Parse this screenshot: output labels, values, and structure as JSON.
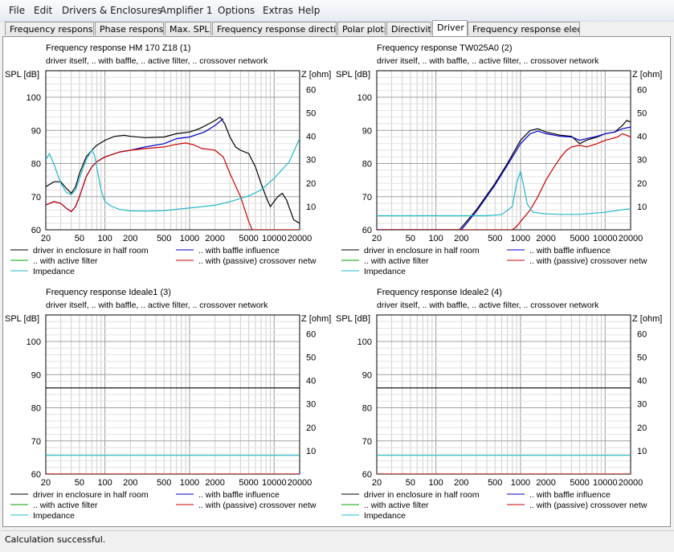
{
  "menu": [
    "File",
    "Edit",
    "Drivers & Enclosures",
    "Amplifier 1",
    "Options",
    "Extras",
    "Help"
  ],
  "tabs": [
    {
      "label": "Frequency response.",
      "active": false
    },
    {
      "label": "Phase response",
      "active": false
    },
    {
      "label": "Max. SPL",
      "active": false
    },
    {
      "label": "Frequency response directions",
      "active": false
    },
    {
      "label": "Polar plots",
      "active": false
    },
    {
      "label": "Directivity",
      "active": false
    },
    {
      "label": "Driver",
      "active": true
    },
    {
      "label": "Frequency response electr..",
      "active": false
    }
  ],
  "status": "Calculation successful.",
  "colors": {
    "driver_in_enclosure": "#000000",
    "baffle_influence": "#0000cc",
    "active_filter": "#00a000",
    "passive_crossover": "#cc0000",
    "impedance": "#22b8c8"
  },
  "legend": [
    {
      "label": "driver in enclosure in half room",
      "color": "#000000"
    },
    {
      "label": ".. with baffle influence",
      "color": "#0000cc"
    },
    {
      "label": ".. with active filter",
      "color": "#00a000"
    },
    {
      "label": ".. with (passive) crossover netw",
      "color": "#cc0000"
    },
    {
      "label": "Impedance",
      "color": "#22b8c8"
    }
  ],
  "chart_data": [
    {
      "type": "line",
      "title": "Frequency response HM 170 Z18 (1)",
      "subtitle": "driver itself, .. with baffle, .. active filter, .. crossover network",
      "ylabel": "SPL [dB]",
      "y2label": "Z [ohm]",
      "xscale": "log",
      "xlim": [
        20,
        20000
      ],
      "ylim": [
        60,
        108
      ],
      "y2lim": [
        0,
        68
      ],
      "x_ticks": [
        "20",
        "50",
        "100",
        "200",
        "500",
        "1000",
        "2000",
        "5000",
        "10000",
        "20000"
      ],
      "y_ticks": [
        "60",
        "70",
        "80",
        "90",
        "100"
      ],
      "y2_ticks": [
        "10",
        "20",
        "30",
        "40",
        "50",
        "60"
      ],
      "grid": true,
      "series": [
        {
          "name": "driver in enclosure in half room",
          "color": "#000000",
          "axis": "left",
          "points": [
            [
              20,
              73
            ],
            [
              25,
              74.5
            ],
            [
              30,
              74.5
            ],
            [
              35,
              72.5
            ],
            [
              40,
              71
            ],
            [
              45,
              73
            ],
            [
              50,
              77
            ],
            [
              60,
              82
            ],
            [
              70,
              84
            ],
            [
              80,
              85.5
            ],
            [
              100,
              87
            ],
            [
              130,
              88.2
            ],
            [
              170,
              88.5
            ],
            [
              200,
              88.2
            ],
            [
              300,
              87.8
            ],
            [
              500,
              88
            ],
            [
              700,
              89
            ],
            [
              1000,
              89.5
            ],
            [
              1300,
              90.5
            ],
            [
              1700,
              92
            ],
            [
              2000,
              93
            ],
            [
              2300,
              94
            ],
            [
              2600,
              92
            ],
            [
              3000,
              88
            ],
            [
              3500,
              85
            ],
            [
              4000,
              84
            ],
            [
              5000,
              83
            ],
            [
              6000,
              79
            ],
            [
              7000,
              74
            ],
            [
              8000,
              70
            ],
            [
              9000,
              67
            ],
            [
              11000,
              70
            ],
            [
              12500,
              71
            ],
            [
              14000,
              69
            ],
            [
              17000,
              63
            ],
            [
              20000,
              62
            ]
          ]
        },
        {
          "name": ".. with baffle influence",
          "color": "#0000cc",
          "axis": "left",
          "points": [
            [
              20,
              67.5
            ],
            [
              25,
              68.5
            ],
            [
              30,
              68
            ],
            [
              35,
              66.5
            ],
            [
              40,
              65.5
            ],
            [
              45,
              67
            ],
            [
              50,
              70
            ],
            [
              60,
              76
            ],
            [
              70,
              79
            ],
            [
              80,
              80.5
            ],
            [
              100,
              82
            ],
            [
              150,
              83.5
            ],
            [
              200,
              84
            ],
            [
              300,
              85
            ],
            [
              500,
              86
            ],
            [
              700,
              87.5
            ],
            [
              1000,
              88
            ],
            [
              1500,
              89.5
            ],
            [
              2000,
              91.5
            ],
            [
              2500,
              93.5
            ]
          ]
        },
        {
          "name": ".. with (passive) crossover netw",
          "color": "#cc0000",
          "axis": "left",
          "points": [
            [
              20,
              67.5
            ],
            [
              25,
              68.5
            ],
            [
              30,
              68
            ],
            [
              35,
              66.5
            ],
            [
              40,
              65.5
            ],
            [
              45,
              67
            ],
            [
              50,
              70
            ],
            [
              60,
              76
            ],
            [
              70,
              79
            ],
            [
              80,
              80.5
            ],
            [
              100,
              82
            ],
            [
              150,
              83.5
            ],
            [
              200,
              84
            ],
            [
              300,
              84.5
            ],
            [
              500,
              85
            ],
            [
              700,
              85.8
            ],
            [
              900,
              86.2
            ],
            [
              1100,
              85.7
            ],
            [
              1400,
              84.5
            ],
            [
              1700,
              84.3
            ],
            [
              2000,
              84
            ],
            [
              2500,
              82
            ],
            [
              3000,
              77
            ],
            [
              4000,
              70
            ],
            [
              5000,
              62.5
            ],
            [
              5500,
              60
            ],
            [
              20000,
              60
            ]
          ]
        },
        {
          "name": "Impedance",
          "color": "#22b8c8",
          "axis": "right",
          "points": [
            [
              20,
              30
            ],
            [
              22,
              32.5
            ],
            [
              25,
              28
            ],
            [
              30,
              20
            ],
            [
              35,
              16
            ],
            [
              40,
              15
            ],
            [
              45,
              17
            ],
            [
              50,
              22
            ],
            [
              60,
              30
            ],
            [
              70,
              34
            ],
            [
              75,
              32
            ],
            [
              80,
              27
            ],
            [
              90,
              17
            ],
            [
              100,
              12
            ],
            [
              120,
              10
            ],
            [
              150,
              8.7
            ],
            [
              200,
              8.1
            ],
            [
              300,
              8
            ],
            [
              500,
              8.2
            ],
            [
              1000,
              9.3
            ],
            [
              2000,
              10.5
            ],
            [
              3000,
              12
            ],
            [
              5000,
              14.5
            ],
            [
              7000,
              17
            ],
            [
              10000,
              22
            ],
            [
              15000,
              29
            ],
            [
              20000,
              39
            ]
          ]
        }
      ]
    },
    {
      "type": "line",
      "title": "Frequency response TW025A0 (2)",
      "subtitle": "driver itself, .. with baffle, .. active filter, .. crossover network",
      "ylabel": "SPL [dB]",
      "y2label": "Z [ohm]",
      "xscale": "log",
      "xlim": [
        20,
        20000
      ],
      "ylim": [
        60,
        108
      ],
      "y2lim": [
        0,
        68
      ],
      "x_ticks": [
        "20",
        "50",
        "100",
        "200",
        "500",
        "1000",
        "2000",
        "5000",
        "10000",
        "20000"
      ],
      "y_ticks": [
        "60",
        "70",
        "80",
        "90",
        "100"
      ],
      "y2_ticks": [
        "10",
        "20",
        "30",
        "40",
        "50",
        "60"
      ],
      "grid": true,
      "series": [
        {
          "name": "driver in enclosure in half room",
          "color": "#000000",
          "axis": "left",
          "points": [
            [
              20,
              60
            ],
            [
              190,
              60
            ],
            [
              300,
              66
            ],
            [
              500,
              74
            ],
            [
              700,
              80
            ],
            [
              1000,
              87
            ],
            [
              1300,
              90
            ],
            [
              1600,
              90.5
            ],
            [
              2000,
              89.5
            ],
            [
              3000,
              88.5
            ],
            [
              4000,
              88.2
            ],
            [
              5000,
              86
            ],
            [
              6000,
              87
            ],
            [
              8000,
              88
            ],
            [
              10000,
              89
            ],
            [
              13000,
              89.5
            ],
            [
              16000,
              91.5
            ],
            [
              18000,
              93
            ],
            [
              20000,
              92.5
            ]
          ]
        },
        {
          "name": ".. with baffle influence",
          "color": "#0000cc",
          "axis": "left",
          "points": [
            [
              20,
              60
            ],
            [
              200,
              60
            ],
            [
              300,
              65.5
            ],
            [
              500,
              73.5
            ],
            [
              700,
              79.5
            ],
            [
              1000,
              86
            ],
            [
              1300,
              89
            ],
            [
              1600,
              89.8
            ],
            [
              2000,
              89
            ],
            [
              3000,
              88.2
            ],
            [
              4000,
              88
            ],
            [
              5000,
              87
            ],
            [
              6000,
              87.5
            ],
            [
              8000,
              88.2
            ],
            [
              10000,
              89
            ],
            [
              13000,
              89.5
            ],
            [
              16000,
              90.5
            ],
            [
              20000,
              91
            ]
          ]
        },
        {
          "name": ".. with (passive) crossover netw",
          "color": "#cc0000",
          "axis": "left",
          "points": [
            [
              20,
              60
            ],
            [
              800,
              60
            ],
            [
              900,
              61
            ],
            [
              1000,
              62.5
            ],
            [
              1300,
              66
            ],
            [
              1600,
              70
            ],
            [
              2000,
              75
            ],
            [
              2500,
              79
            ],
            [
              3000,
              82
            ],
            [
              3500,
              84
            ],
            [
              4000,
              85
            ],
            [
              5000,
              85.5
            ],
            [
              6000,
              85
            ],
            [
              7000,
              85.5
            ],
            [
              8000,
              86
            ],
            [
              10000,
              87
            ],
            [
              12000,
              87.5
            ],
            [
              14000,
              88
            ],
            [
              16000,
              89
            ],
            [
              18000,
              88.5
            ],
            [
              20000,
              88
            ]
          ]
        },
        {
          "name": "Impedance",
          "color": "#22b8c8",
          "axis": "right",
          "points": [
            [
              20,
              6
            ],
            [
              400,
              6
            ],
            [
              600,
              6.5
            ],
            [
              800,
              10
            ],
            [
              900,
              20
            ],
            [
              1000,
              25
            ],
            [
              1100,
              18
            ],
            [
              1200,
              11
            ],
            [
              1400,
              7.5
            ],
            [
              2000,
              6.8
            ],
            [
              3000,
              6.6
            ],
            [
              5000,
              6.6
            ],
            [
              10000,
              7.5
            ],
            [
              15000,
              8.5
            ],
            [
              20000,
              9
            ]
          ]
        }
      ]
    },
    {
      "type": "line",
      "title": "Frequency response Ideale1 (3)",
      "subtitle": "driver itself, .. with baffle, .. active filter, .. crossover network",
      "ylabel": "SPL [dB]",
      "y2label": "Z [ohm]",
      "xscale": "log",
      "xlim": [
        20,
        20000
      ],
      "ylim": [
        60,
        108
      ],
      "y2lim": [
        0,
        68
      ],
      "x_ticks": [
        "20",
        "50",
        "100",
        "200",
        "500",
        "1000",
        "2000",
        "5000",
        "10000",
        "20000"
      ],
      "y_ticks": [
        "60",
        "70",
        "80",
        "90",
        "100"
      ],
      "y2_ticks": [
        "10",
        "20",
        "30",
        "40",
        "50",
        "60"
      ],
      "grid": true,
      "series": [
        {
          "name": "driver in enclosure in half room",
          "color": "#000000",
          "axis": "left",
          "points": [
            [
              20,
              86
            ],
            [
              20000,
              86
            ]
          ]
        },
        {
          "name": ".. with (passive) crossover netw",
          "color": "#cc0000",
          "axis": "left",
          "points": [
            [
              20,
              60
            ],
            [
              20000,
              60
            ]
          ]
        },
        {
          "name": "Impedance",
          "color": "#22b8c8",
          "axis": "right",
          "points": [
            [
              20,
              8
            ],
            [
              20000,
              8
            ]
          ]
        }
      ]
    },
    {
      "type": "line",
      "title": "Frequency response Ideale2 (4)",
      "subtitle": "driver itself, .. with baffle, .. active filter, .. crossover network",
      "ylabel": "SPL [dB]",
      "y2label": "Z [ohm]",
      "xscale": "log",
      "xlim": [
        20,
        20000
      ],
      "ylim": [
        60,
        108
      ],
      "y2lim": [
        0,
        68
      ],
      "x_ticks": [
        "20",
        "50",
        "100",
        "200",
        "500",
        "1000",
        "2000",
        "5000",
        "10000",
        "20000"
      ],
      "y_ticks": [
        "60",
        "70",
        "80",
        "90",
        "100"
      ],
      "y2_ticks": [
        "10",
        "20",
        "30",
        "40",
        "50",
        "60"
      ],
      "grid": true,
      "series": [
        {
          "name": "driver in enclosure in half room",
          "color": "#000000",
          "axis": "left",
          "points": [
            [
              20,
              86
            ],
            [
              20000,
              86
            ]
          ]
        },
        {
          "name": ".. with (passive) crossover netw",
          "color": "#cc0000",
          "axis": "left",
          "points": [
            [
              20,
              60
            ],
            [
              20000,
              60
            ]
          ]
        },
        {
          "name": "Impedance",
          "color": "#22b8c8",
          "axis": "right",
          "points": [
            [
              20,
              8
            ],
            [
              20000,
              8
            ]
          ]
        }
      ]
    }
  ]
}
